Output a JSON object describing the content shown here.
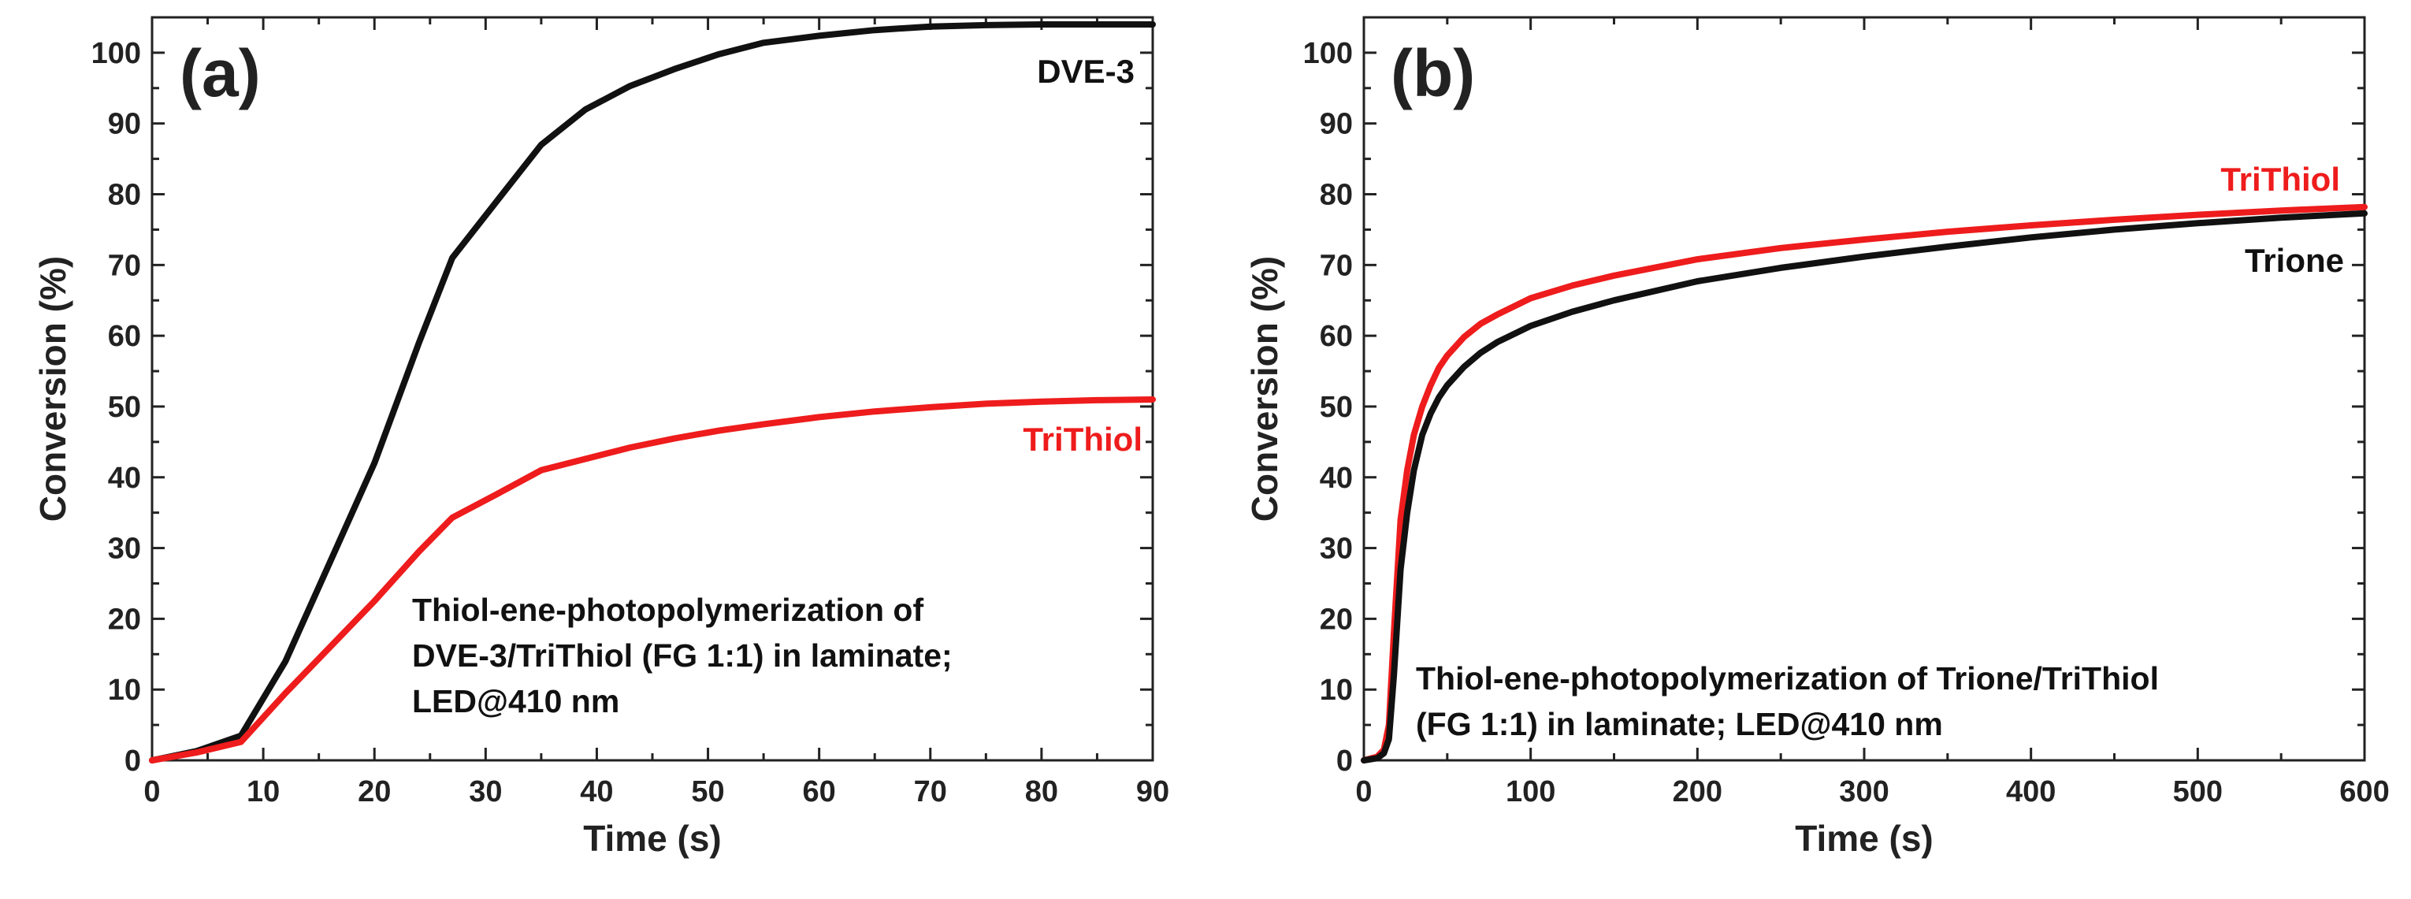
{
  "chart_data": [
    {
      "type": "line",
      "panel_label": "(a)",
      "xlabel": "Time (s)",
      "ylabel": "Conversion (%)",
      "xlim": [
        0,
        90
      ],
      "ylim": [
        0,
        105
      ],
      "xticks": [
        0,
        10,
        20,
        30,
        40,
        50,
        60,
        70,
        80,
        90
      ],
      "yticks": [
        0,
        10,
        20,
        30,
        40,
        50,
        60,
        70,
        80,
        90,
        100
      ],
      "annotation": [
        "Thiol-ene-photopolymerization of",
        "DVE-3/TriThiol (FG 1:1) in laminate;",
        "LED@410 nm"
      ],
      "series": [
        {
          "name": "DVE-3",
          "color": "#111111",
          "x": [
            0,
            4,
            8,
            12,
            16,
            20,
            24,
            27,
            31,
            35,
            39,
            43,
            47,
            51,
            55,
            60,
            65,
            70,
            75,
            80,
            85,
            90
          ],
          "y": [
            0,
            1.3,
            3.5,
            14,
            28,
            42,
            59,
            71,
            79,
            87,
            92,
            95.3,
            97.7,
            99.8,
            101.4,
            102.4,
            103.2,
            103.7,
            103.9,
            104,
            104,
            104
          ]
        },
        {
          "name": "TriThiol",
          "color": "#ee1c1c",
          "x": [
            0,
            4,
            8,
            12,
            16,
            20,
            24,
            27,
            31,
            35,
            39,
            43,
            47,
            51,
            55,
            60,
            65,
            70,
            75,
            80,
            85,
            90
          ],
          "y": [
            0,
            1.1,
            2.6,
            9.5,
            16,
            22.5,
            29.5,
            34.3,
            37.6,
            41,
            42.6,
            44.2,
            45.5,
            46.6,
            47.5,
            48.5,
            49.3,
            49.9,
            50.4,
            50.7,
            50.9,
            51
          ]
        }
      ]
    },
    {
      "type": "line",
      "panel_label": "(b)",
      "xlabel": "Time (s)",
      "ylabel": "Conversion (%)",
      "xlim": [
        0,
        600
      ],
      "ylim": [
        0,
        105
      ],
      "xticks": [
        0,
        100,
        200,
        300,
        400,
        500,
        600
      ],
      "yticks": [
        0,
        10,
        20,
        30,
        40,
        50,
        60,
        70,
        80,
        90,
        100
      ],
      "annotation": [
        "Thiol-ene-photopolymerization of Trione/TriThiol",
        "(FG 1:1) in laminate; LED@410 nm"
      ],
      "series": [
        {
          "name": "TriThiol",
          "color": "#ee1c1c",
          "x": [
            0,
            8,
            12,
            15,
            18,
            22,
            26,
            30,
            35,
            40,
            45,
            50,
            60,
            70,
            80,
            100,
            125,
            150,
            200,
            250,
            300,
            350,
            400,
            450,
            500,
            550,
            600
          ],
          "y": [
            0,
            0.5,
            1.5,
            5,
            18,
            34,
            41,
            46,
            50,
            53,
            55.5,
            57.2,
            59.8,
            61.7,
            63,
            65.3,
            67.1,
            68.5,
            70.8,
            72.4,
            73.6,
            74.7,
            75.6,
            76.4,
            77.1,
            77.7,
            78.2
          ]
        },
        {
          "name": "Trione",
          "color": "#111111",
          "x": [
            0,
            8,
            12,
            15,
            18,
            22,
            26,
            30,
            35,
            40,
            45,
            50,
            60,
            70,
            80,
            100,
            125,
            150,
            200,
            250,
            300,
            350,
            400,
            450,
            500,
            550,
            600
          ],
          "y": [
            0,
            0.3,
            1,
            3,
            12,
            27,
            35,
            41,
            46,
            49,
            51.3,
            53,
            55.6,
            57.6,
            59.1,
            61.4,
            63.4,
            65,
            67.7,
            69.6,
            71.2,
            72.6,
            73.9,
            75,
            75.9,
            76.7,
            77.3
          ]
        }
      ]
    }
  ]
}
